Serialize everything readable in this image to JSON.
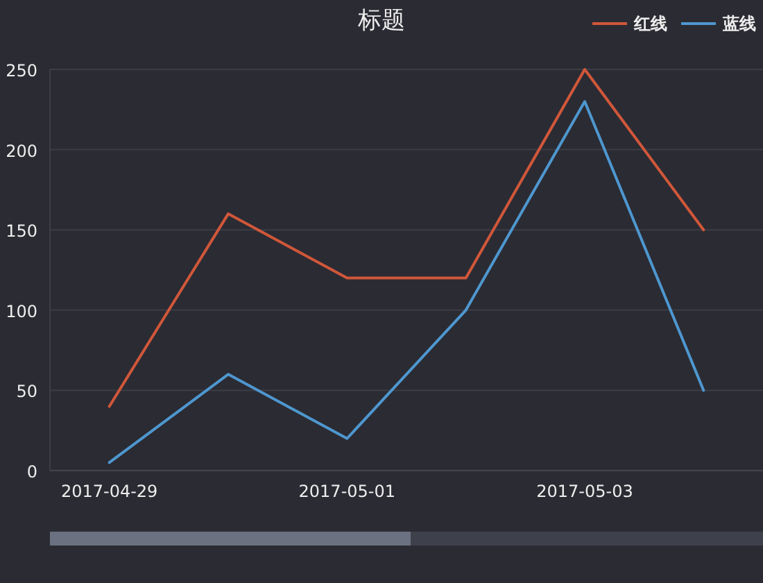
{
  "chart_data": {
    "type": "line",
    "title": "标题",
    "categories": [
      "2017-04-29",
      null,
      "2017-05-01",
      null,
      "2017-05-03",
      null
    ],
    "series": [
      {
        "name": "红线",
        "color": "#d0573a",
        "values": [
          40,
          160,
          120,
          120,
          250,
          150
        ]
      },
      {
        "name": "蓝线",
        "color": "#4e97cf",
        "values": [
          5,
          60,
          20,
          100,
          230,
          50
        ]
      }
    ],
    "ylim": [
      0,
      250
    ],
    "yticks": [
      0,
      50,
      100,
      150,
      200,
      250
    ],
    "grid": "y",
    "legend": "top right",
    "marker": "none",
    "line_style": "solid"
  }
}
